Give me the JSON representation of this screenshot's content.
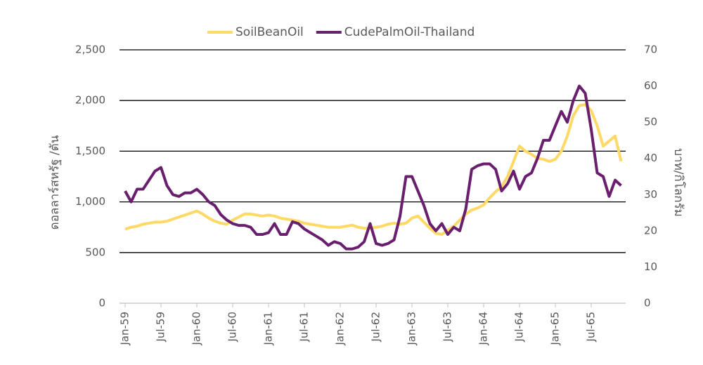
{
  "chart_data": {
    "type": "line",
    "categories": [
      "Jan-59",
      null,
      null,
      null,
      null,
      null,
      "Jul-59",
      null,
      null,
      null,
      null,
      null,
      "Jan-60",
      null,
      null,
      null,
      null,
      null,
      "Jul-60",
      null,
      null,
      null,
      null,
      null,
      "Jan-61",
      null,
      null,
      null,
      null,
      null,
      "Jul-61",
      null,
      null,
      null,
      null,
      null,
      "Jan-62",
      null,
      null,
      null,
      null,
      null,
      "Jul-62",
      null,
      null,
      null,
      null,
      null,
      "Jan-63",
      null,
      null,
      null,
      null,
      null,
      "Jul-63",
      null,
      null,
      null,
      null,
      null,
      "Jan-64",
      null,
      null,
      null,
      null,
      null,
      "Jul-64",
      null,
      null,
      null,
      null,
      null,
      "Jan-65",
      null,
      null,
      null,
      null,
      null,
      "Jul-65",
      null,
      null,
      null,
      null,
      null
    ],
    "series": [
      {
        "name": "SoilBeanOil",
        "color": "#ffd966",
        "values": [
          730,
          750,
          760,
          780,
          790,
          800,
          800,
          810,
          830,
          850,
          870,
          890,
          910,
          880,
          840,
          810,
          790,
          780,
          820,
          850,
          880,
          880,
          870,
          860,
          870,
          860,
          840,
          830,
          820,
          810,
          790,
          780,
          770,
          760,
          750,
          750,
          750,
          760,
          770,
          750,
          740,
          740,
          750,
          760,
          780,
          790,
          780,
          790,
          840,
          860,
          800,
          740,
          690,
          680,
          720,
          760,
          820,
          880,
          920,
          940,
          970,
          1040,
          1100,
          1150,
          1250,
          1400,
          1550,
          1500,
          1470,
          1430,
          1420,
          1400,
          1420,
          1500,
          1650,
          1850,
          1950,
          1960,
          1900,
          1750,
          1550,
          1600,
          1650,
          1400
        ]
      },
      {
        "name": "CudePalmOil-Thailand",
        "color": "#6a1f6e",
        "axis": "y2",
        "values": [
          31,
          28,
          31.5,
          31.5,
          34,
          36.5,
          37.5,
          32.5,
          30,
          29.5,
          30.5,
          30.5,
          31.5,
          30,
          28,
          27,
          24.5,
          23,
          22,
          21.5,
          21.5,
          21,
          19,
          19,
          19.5,
          22,
          19,
          19,
          22.5,
          22,
          20.5,
          19.5,
          18.5,
          17.5,
          16,
          17,
          16.5,
          15,
          15,
          15.5,
          17,
          22,
          16.5,
          16,
          16.5,
          17.5,
          24,
          35,
          35,
          31,
          27,
          22,
          20,
          22,
          19,
          21,
          20,
          26,
          37,
          38,
          38.5,
          38.5,
          37,
          31,
          33,
          36.5,
          31.5,
          35,
          36,
          40,
          45,
          45,
          49,
          53,
          50,
          56,
          60,
          58,
          48,
          36,
          35,
          29.5,
          34,
          32.5
        ]
      }
    ],
    "ylabel": "ดอลลาร์สหรัฐ /ตัน",
    "y2label": "บาท/กิโลกรัม",
    "ylim": [
      0,
      2500
    ],
    "yticks": [
      0,
      500,
      {
        "value": 1000,
        "label": "1,000"
      },
      {
        "value": 1500,
        "label": "1,500"
      },
      {
        "value": 2000,
        "label": "2,000"
      },
      {
        "value": 2500,
        "label": "2,500"
      }
    ],
    "y2lim": [
      0,
      70
    ],
    "y2ticks": [
      0,
      10,
      20,
      30,
      40,
      50,
      60,
      70
    ],
    "grid": true,
    "legend": "top"
  }
}
